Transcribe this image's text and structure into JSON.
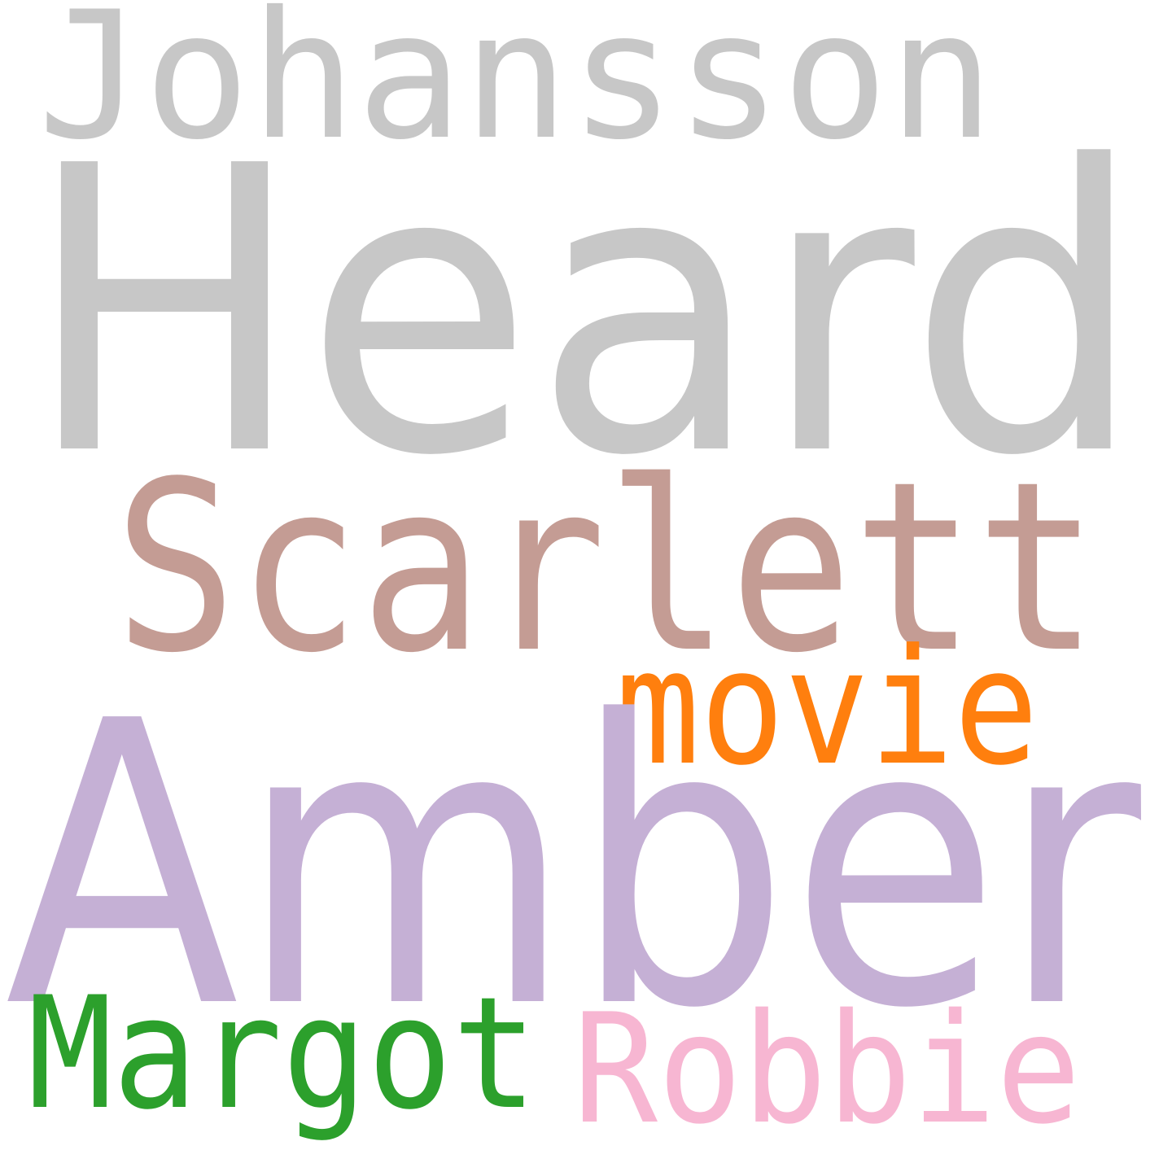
{
  "word_cloud": {
    "words": [
      {
        "text": "Johansson",
        "color": "#c7c7c7"
      },
      {
        "text": "Heard",
        "color": "#c7c7c7"
      },
      {
        "text": "Scarlett",
        "color": "#c49c94"
      },
      {
        "text": "movie",
        "color": "#ff7f0e"
      },
      {
        "text": "Amber",
        "color": "#c5b0d5"
      },
      {
        "text": "Margot",
        "color": "#2ca02c"
      },
      {
        "text": "Robbie",
        "color": "#f7b6d2"
      }
    ]
  }
}
